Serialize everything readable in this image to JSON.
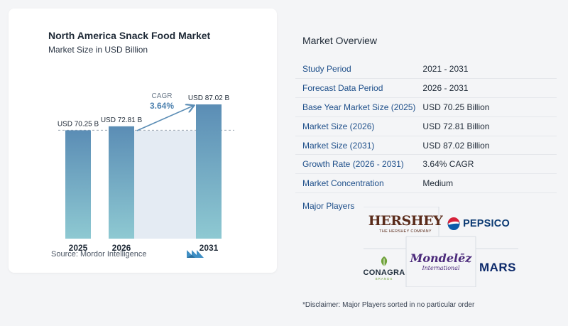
{
  "chart_data": {
    "type": "bar",
    "title": "North America Snack Food Market",
    "subtitle": "Market Size in USD Billion",
    "categories": [
      "2025",
      "2026",
      "2031"
    ],
    "values": [
      70.25,
      72.81,
      87.02
    ],
    "value_labels": [
      "USD 70.25 B",
      "USD 72.81 B",
      "USD 87.02 B"
    ],
    "cagr_label": "CAGR",
    "cagr_value": "3.64%",
    "reference_line_value": 70.25,
    "bar_color_top": "#5b8db5",
    "bar_color_bottom": "#8ec9d2",
    "ylim": [
      0,
      87.02
    ]
  },
  "source": "Source:  Mordor Intelligence",
  "overview": {
    "title": "Market Overview",
    "rows": [
      {
        "key": "Study Period",
        "value": "2021 - 2031"
      },
      {
        "key": "Forecast Data Period",
        "value": "2026 - 2031"
      },
      {
        "key": "Base Year Market Size (2025)",
        "value": "USD 70.25 Billion"
      },
      {
        "key": "Market Size (2026)",
        "value": "USD 72.81 Billion"
      },
      {
        "key": "Market Size (2031)",
        "value": "USD 87.02 Billion"
      },
      {
        "key": "Growth Rate (2026 - 2031)",
        "value": "3.64% CAGR"
      },
      {
        "key": "Market Concentration",
        "value": "Medium"
      }
    ]
  },
  "players": {
    "label": "Major Players",
    "hershey": {
      "name": "HERSHEY",
      "sub": "THE HERSHEY COMPANY"
    },
    "pepsico": {
      "name": "PEPSICO"
    },
    "conagra": {
      "name": "CONAGRA",
      "sub": "BRANDS"
    },
    "mondelez": {
      "name": "Mondelēz",
      "sub": "International"
    },
    "mars": {
      "name": "MARS"
    }
  },
  "disclaimer": "*Disclaimer: Major Players sorted in no particular order",
  "colors": {
    "key_text": "#1e4f8a",
    "accent_arrow": "#5b8db5",
    "projection_fill": "#e4ebf3"
  }
}
